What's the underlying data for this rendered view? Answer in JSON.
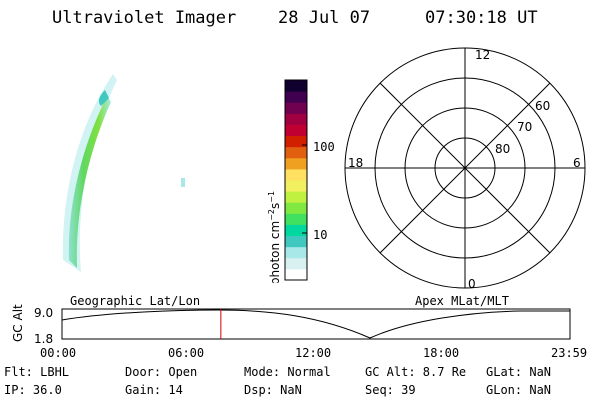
{
  "header": {
    "instrument": "Ultraviolet Imager",
    "date": "28 Jul 07",
    "time": "07:30:18 UT"
  },
  "colorbar": {
    "label": "photon cm-2s-1",
    "ticks": [
      "100",
      "10"
    ],
    "colors": [
      "#ffffff",
      "#d9f0f0",
      "#a8e8e8",
      "#40c8c0",
      "#00d8a0",
      "#40e060",
      "#80e840",
      "#c0f040",
      "#f0f060",
      "#ffe060",
      "#f0a020",
      "#e06010",
      "#d02000",
      "#c00030",
      "#a00040",
      "#700050",
      "#400050",
      "#100030"
    ]
  },
  "polar": {
    "mlt_labels": [
      "12",
      "18",
      "6",
      "0"
    ],
    "lat_labels": [
      "60",
      "70",
      "80"
    ]
  },
  "orbit_strip": {
    "ylabel": "GC Alt",
    "y_ticks": [
      "9.0",
      "1.8"
    ],
    "left_caption": "Geographic Lat/Lon",
    "right_caption": "Apex MLat/MLT",
    "x_ticks": [
      "00:00",
      "06:00",
      "12:00",
      "18:00",
      "23:59"
    ],
    "current_time_hours": 7.505,
    "marker_color": "#d00000"
  },
  "info": {
    "filter": "Flt: LBHL",
    "door": "Door: Open",
    "mode": "Mode: Normal",
    "gc_alt": "GC Alt: 8.7 Re",
    "glat": "GLat:    NaN",
    "ip": "IP: 36.0",
    "gain": "Gain: 14",
    "dsp": "Dsp:    NaN",
    "seq": "Seq: 39",
    "glon": "GLon:    NaN"
  }
}
